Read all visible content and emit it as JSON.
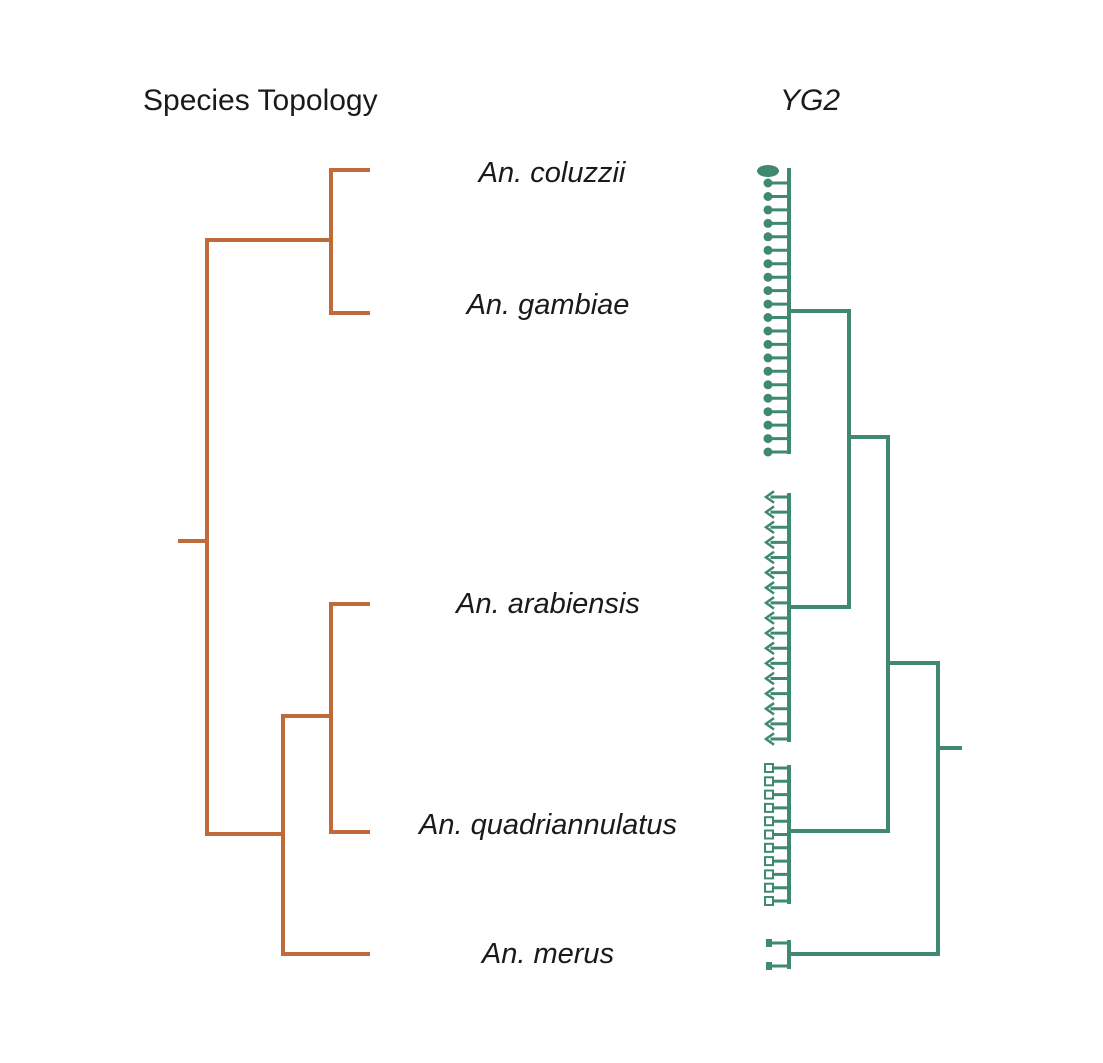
{
  "titles": {
    "species_topology": "Species Topology",
    "gene_tree": "YG2"
  },
  "species": [
    {
      "id": "coluzzii",
      "label": "An. coluzzii"
    },
    {
      "id": "gambiae",
      "label": "An. gambiae"
    },
    {
      "id": "arabiensis",
      "label": "An. arabiensis"
    },
    {
      "id": "quadriannulatus",
      "label": "An. quadriannulatus"
    },
    {
      "id": "merus",
      "label": "An. merus"
    }
  ],
  "species_tree_newick": "((coluzzii,gambiae),((arabiensis,quadriannulatus),merus))",
  "gene_tree_newick": "((((coluzzii_gambiae_clade,arabiensis_clade),quadriannulatus_clade),merus_clade))",
  "gene_tree_tips": {
    "coluzzii_gambiae_clade": {
      "count": 22,
      "marker": "filled-circle"
    },
    "arabiensis_clade": {
      "count": 17,
      "marker": "arrow"
    },
    "quadriannulatus_clade": {
      "count": 11,
      "marker": "open-square"
    },
    "merus_clade": {
      "count": 2,
      "marker": "filled-square"
    }
  },
  "colors": {
    "species_tree": "#c0693a",
    "gene_tree": "#3f8a6e",
    "text": "#1a1a1a",
    "background": "#ffffff"
  }
}
